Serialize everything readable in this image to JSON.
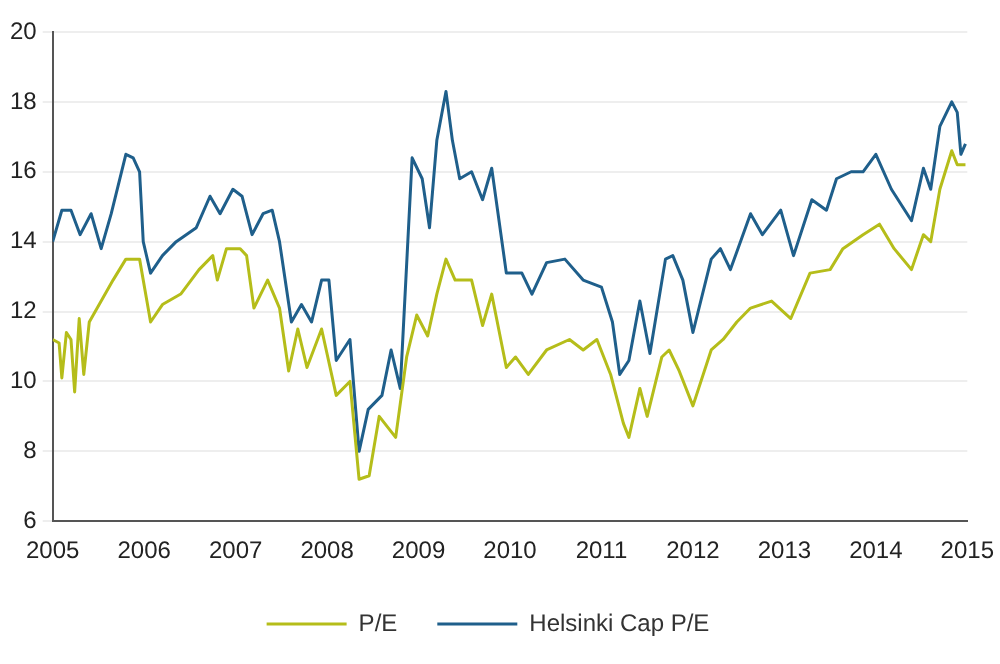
{
  "chart_data": {
    "type": "line",
    "xlim": [
      2005,
      2015
    ],
    "xticks": [
      2005,
      2006,
      2007,
      2008,
      2009,
      2010,
      2011,
      2012,
      2013,
      2014,
      2015
    ],
    "ylim": [
      6,
      20
    ],
    "yticks": [
      6,
      8,
      10,
      12,
      14,
      16,
      18,
      20
    ],
    "grid": "y",
    "legend": "bottom",
    "marker": "none",
    "line_style": "solid",
    "series": [
      {
        "name": "P/E",
        "color": "#b5bd1a",
        "x": [
          2005.0,
          2005.07,
          2005.1,
          2005.15,
          2005.2,
          2005.24,
          2005.29,
          2005.34,
          2005.4,
          2005.53,
          2005.66,
          2005.8,
          2005.95,
          2006.03,
          2006.07,
          2006.2,
          2006.4,
          2006.6,
          2006.75,
          2006.8,
          2006.9,
          2007.05,
          2007.12,
          2007.2,
          2007.35,
          2007.48,
          2007.58,
          2007.68,
          2007.78,
          2007.94,
          2008.1,
          2008.25,
          2008.35,
          2008.46,
          2008.57,
          2008.75,
          2008.87,
          2008.98,
          2009.1,
          2009.2,
          2009.3,
          2009.4,
          2009.58,
          2009.7,
          2009.8,
          2009.96,
          2010.06,
          2010.2,
          2010.4,
          2010.65,
          2010.8,
          2010.95,
          2011.1,
          2011.24,
          2011.3,
          2011.42,
          2011.5,
          2011.66,
          2011.74,
          2011.85,
          2012.0,
          2012.2,
          2012.33,
          2012.48,
          2012.63,
          2012.86,
          2013.07,
          2013.28,
          2013.5,
          2013.64,
          2013.86,
          2014.04,
          2014.2,
          2014.39,
          2014.52,
          2014.6,
          2014.7,
          2014.83,
          2014.89,
          2014.98
        ],
        "values": [
          11.2,
          11.1,
          10.1,
          11.4,
          11.2,
          9.7,
          11.8,
          10.2,
          11.7,
          12.3,
          12.9,
          13.5,
          13.5,
          12.3,
          11.7,
          12.2,
          12.5,
          13.2,
          13.6,
          12.9,
          13.8,
          13.8,
          13.6,
          12.1,
          12.9,
          12.1,
          10.3,
          11.5,
          10.4,
          11.5,
          9.6,
          10.0,
          7.2,
          7.3,
          9.0,
          8.4,
          10.7,
          11.9,
          11.3,
          12.5,
          13.5,
          12.9,
          12.9,
          11.6,
          12.5,
          10.4,
          10.7,
          10.2,
          10.9,
          11.2,
          10.9,
          11.2,
          10.2,
          8.8,
          8.4,
          9.8,
          9.0,
          10.7,
          10.9,
          10.3,
          9.3,
          10.9,
          11.2,
          11.7,
          12.1,
          12.3,
          11.8,
          13.1,
          13.2,
          13.8,
          14.2,
          14.5,
          13.8,
          13.2,
          14.2,
          14.0,
          15.5,
          16.6,
          16.2,
          16.2
        ]
      },
      {
        "name": "Helsinki Cap P/E",
        "color": "#1f5f8b",
        "x": [
          2005.0,
          2005.1,
          2005.2,
          2005.3,
          2005.42,
          2005.53,
          2005.64,
          2005.8,
          2005.88,
          2005.95,
          2005.99,
          2006.07,
          2006.2,
          2006.35,
          2006.57,
          2006.72,
          2006.83,
          2006.97,
          2007.07,
          2007.18,
          2007.3,
          2007.4,
          2007.48,
          2007.61,
          2007.72,
          2007.83,
          2007.94,
          2008.02,
          2008.1,
          2008.25,
          2008.35,
          2008.45,
          2008.6,
          2008.7,
          2008.8,
          2008.93,
          2009.04,
          2009.12,
          2009.2,
          2009.3,
          2009.37,
          2009.45,
          2009.58,
          2009.7,
          2009.8,
          2009.96,
          2010.13,
          2010.24,
          2010.4,
          2010.6,
          2010.8,
          2011.0,
          2011.12,
          2011.2,
          2011.3,
          2011.42,
          2011.53,
          2011.7,
          2011.78,
          2011.89,
          2012.0,
          2012.2,
          2012.3,
          2012.41,
          2012.63,
          2012.76,
          2012.96,
          2013.1,
          2013.3,
          2013.46,
          2013.57,
          2013.73,
          2013.86,
          2014.0,
          2014.17,
          2014.39,
          2014.52,
          2014.6,
          2014.7,
          2014.83,
          2014.89,
          2014.93,
          2014.98
        ],
        "values": [
          14.0,
          14.9,
          14.9,
          14.2,
          14.8,
          13.8,
          14.8,
          16.5,
          16.4,
          16.0,
          14.0,
          13.1,
          13.6,
          14.0,
          14.4,
          15.3,
          14.8,
          15.5,
          15.3,
          14.2,
          14.8,
          14.9,
          14.0,
          11.7,
          12.2,
          11.7,
          12.9,
          12.9,
          10.6,
          11.2,
          8.0,
          9.2,
          9.6,
          10.9,
          9.8,
          16.4,
          15.8,
          14.4,
          16.9,
          18.3,
          16.9,
          15.8,
          16.0,
          15.2,
          16.1,
          13.1,
          13.1,
          12.5,
          13.4,
          13.5,
          12.9,
          12.7,
          11.7,
          10.2,
          10.6,
          12.3,
          10.8,
          13.5,
          13.6,
          12.9,
          11.4,
          13.5,
          13.8,
          13.2,
          14.8,
          14.2,
          14.9,
          13.6,
          15.2,
          14.9,
          15.8,
          16.0,
          16.0,
          16.5,
          15.5,
          14.6,
          16.1,
          15.5,
          17.3,
          18.0,
          17.7,
          16.5,
          16.8
        ]
      }
    ]
  }
}
